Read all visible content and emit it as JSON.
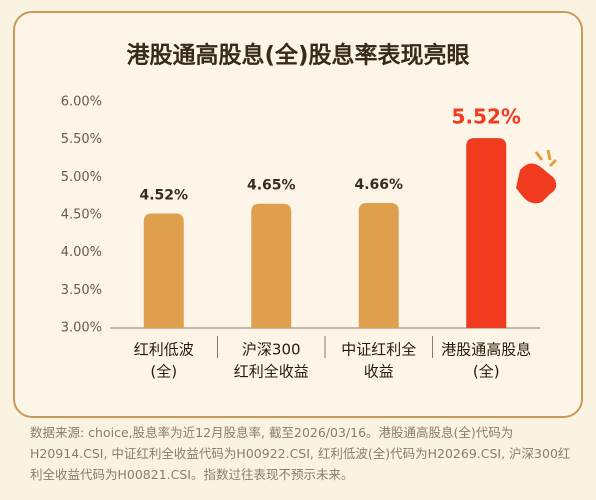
{
  "chart_data": {
    "type": "bar",
    "title": "港股通高股息(全)股息率表现亮眼",
    "categories": [
      [
        "红利低波",
        "(全)"
      ],
      [
        "沪深300",
        "红利全收益"
      ],
      [
        "中证红利全",
        "收益"
      ],
      [
        "港股通高股息",
        "(全)"
      ]
    ],
    "values": [
      4.52,
      4.65,
      4.66,
      5.52
    ],
    "value_labels": [
      "4.52%",
      "4.65%",
      "4.66%",
      "5.52%"
    ],
    "colors": [
      "#dfa04e",
      "#dfa04e",
      "#dfa04e",
      "#f03b1f"
    ],
    "ylim": [
      3,
      6
    ],
    "yticks": [
      {
        "value": 3,
        "label": "3.00%"
      },
      {
        "value": 3.5,
        "label": "3.50%"
      },
      {
        "value": 4,
        "label": "4.00%"
      },
      {
        "value": 4.5,
        "label": "4.50%"
      },
      {
        "value": 5,
        "label": "5.00%"
      },
      {
        "value": 5.5,
        "label": "5.50%"
      },
      {
        "value": 6,
        "label": "6.00%"
      }
    ],
    "grid": false,
    "note": "数据来源: choice,股息率为近12月股息率, 截至2026/03/16。港股通高股息(全)代码为H20914.CSI, 中证红利全收益代码为H00922.CSI, 红利低波(全)代码为H20269.CSI, 沪深300红利全收益代码为H00821.CSI。指数过往表现不预示未来。"
  }
}
